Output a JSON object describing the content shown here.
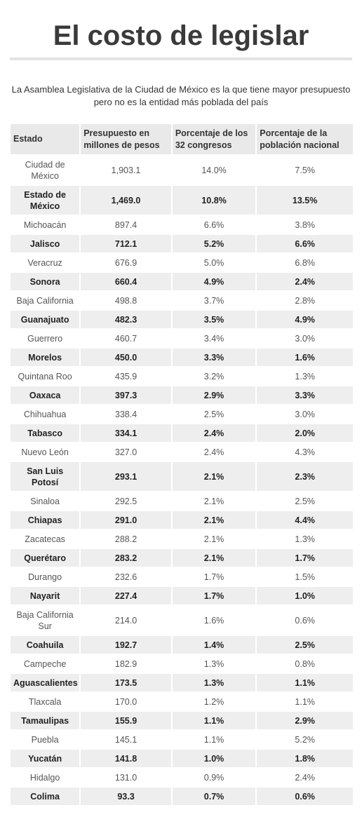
{
  "title": "El costo de legislar",
  "subtitle": "La Asamblea Legislativa de la Ciudad de México es la que tiene mayor presupuesto pero no es la entidad más poblada del país",
  "headers": [
    "Estado",
    "Presupuesto en millones de pesos",
    "Porcentaje de los 32 congresos",
    "Porcentaje de la población nacional"
  ],
  "rows": [
    [
      "Ciudad de México",
      "1,903.1",
      "14.0%",
      "7.5%"
    ],
    [
      "Estado de México",
      "1,469.0",
      "10.8%",
      "13.5%"
    ],
    [
      "Michoacán",
      "897.4",
      "6.6%",
      "3.8%"
    ],
    [
      "Jalisco",
      "712.1",
      "5.2%",
      "6.6%"
    ],
    [
      "Veracruz",
      "676.9",
      "5.0%",
      "6.8%"
    ],
    [
      "Sonora",
      "660.4",
      "4.9%",
      "2.4%"
    ],
    [
      "Baja California",
      "498.8",
      "3.7%",
      "2.8%"
    ],
    [
      "Guanajuato",
      "482.3",
      "3.5%",
      "4.9%"
    ],
    [
      "Guerrero",
      "460.7",
      "3.4%",
      "3.0%"
    ],
    [
      "Morelos",
      "450.0",
      "3.3%",
      "1.6%"
    ],
    [
      "Quintana Roo",
      "435.9",
      "3.2%",
      "1.3%"
    ],
    [
      "Oaxaca",
      "397.3",
      "2.9%",
      "3.3%"
    ],
    [
      "Chihuahua",
      "338.4",
      "2.5%",
      "3.0%"
    ],
    [
      "Tabasco",
      "334.1",
      "2.4%",
      "2.0%"
    ],
    [
      "Nuevo León",
      "327.0",
      "2.4%",
      "4.3%"
    ],
    [
      "San Luis Potosí",
      "293.1",
      "2.1%",
      "2.3%"
    ],
    [
      "Sinaloa",
      "292.5",
      "2.1%",
      "2.5%"
    ],
    [
      "Chiapas",
      "291.0",
      "2.1%",
      "4.4%"
    ],
    [
      "Zacatecas",
      "288.2",
      "2.1%",
      "1.3%"
    ],
    [
      "Querétaro",
      "283.2",
      "2.1%",
      "1.7%"
    ],
    [
      "Durango",
      "232.6",
      "1.7%",
      "1.5%"
    ],
    [
      "Nayarit",
      "227.4",
      "1.7%",
      "1.0%"
    ],
    [
      "Baja California Sur",
      "214.0",
      "1.6%",
      "0.6%"
    ],
    [
      "Coahuila",
      "192.7",
      "1.4%",
      "2.5%"
    ],
    [
      "Campeche",
      "182.9",
      "1.3%",
      "0.8%"
    ],
    [
      "Aguascalientes",
      "173.5",
      "1.3%",
      "1.1%"
    ],
    [
      "Tlaxcala",
      "170.0",
      "1.2%",
      "1.1%"
    ],
    [
      "Tamaulipas",
      "155.9",
      "1.1%",
      "2.9%"
    ],
    [
      "Puebla",
      "145.1",
      "1.1%",
      "5.2%"
    ],
    [
      "Yucatán",
      "141.8",
      "1.0%",
      "1.8%"
    ],
    [
      "Hidalgo",
      "131.0",
      "0.9%",
      "2.4%"
    ],
    [
      "Colima",
      "93.3",
      "0.7%",
      "0.6%"
    ]
  ]
}
